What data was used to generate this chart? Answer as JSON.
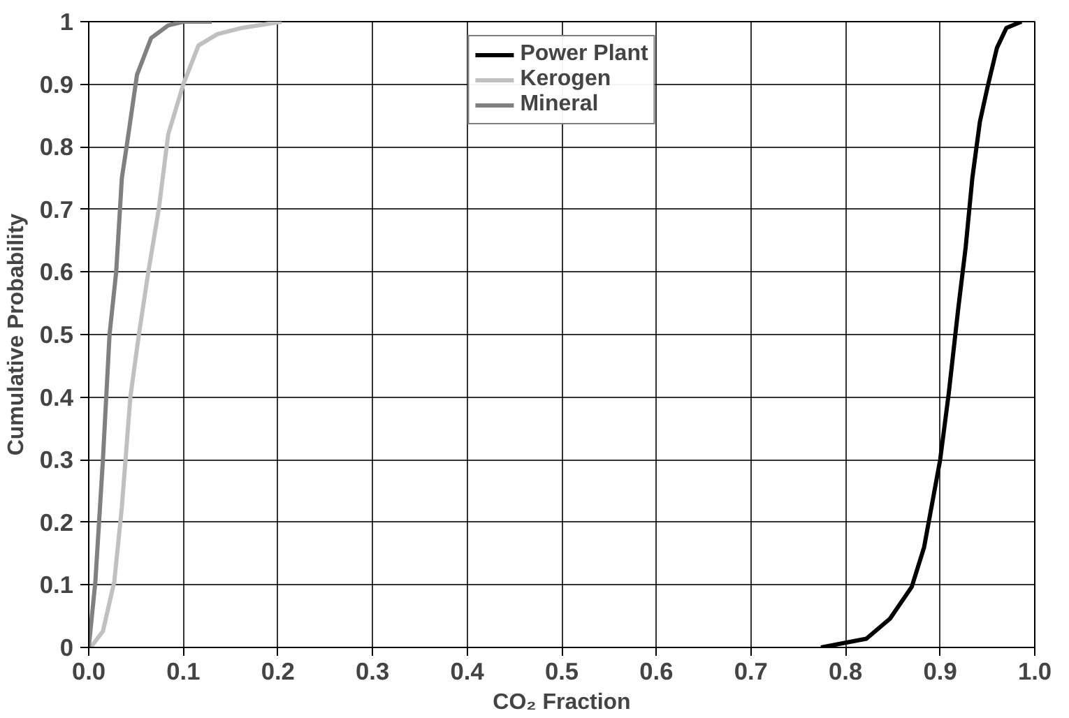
{
  "chart_data": {
    "type": "line",
    "xlabel": "CO₂ Fraction",
    "ylabel": "Cumulative Probability",
    "xlim": [
      0,
      1
    ],
    "ylim": [
      0,
      1
    ],
    "xticks": [
      {
        "value": 0,
        "label": "0.0"
      },
      0.1,
      0.2,
      0.3,
      0.4,
      0.5,
      0.6,
      0.7,
      0.8,
      0.9,
      {
        "value": 1,
        "label": "1.0"
      }
    ],
    "yticks": [
      0,
      0.1,
      0.2,
      0.3,
      0.4,
      0.5,
      0.6,
      0.7,
      0.8,
      0.9,
      1
    ],
    "grid": true,
    "legend": "top",
    "marker": "none",
    "line_style": "solid",
    "series": [
      {
        "name": "Power Plant",
        "color": "#000000",
        "x": [
          0.774,
          0.822,
          0.847,
          0.87,
          0.883,
          0.9,
          0.909,
          0.919,
          0.927,
          0.934,
          0.942,
          0.95,
          0.96,
          0.97,
          0.986
        ],
        "values": [
          0,
          0.014,
          0.046,
          0.097,
          0.16,
          0.3,
          0.405,
          0.54,
          0.64,
          0.75,
          0.84,
          0.895,
          0.958,
          0.99,
          1
        ]
      },
      {
        "name": "Kerogen",
        "color": "#c0c0c0",
        "x": [
          0.002,
          0.015,
          0.027,
          0.035,
          0.044,
          0.053,
          0.063,
          0.074,
          0.084,
          0.1,
          0.116,
          0.136,
          0.162,
          0.204
        ],
        "values": [
          0,
          0.026,
          0.105,
          0.224,
          0.4,
          0.5,
          0.6,
          0.7,
          0.82,
          0.9,
          0.962,
          0.98,
          0.99,
          1
        ]
      },
      {
        "name": "Mineral",
        "color": "#808080",
        "x": [
          0,
          0.007,
          0.015,
          0.022,
          0.029,
          0.035,
          0.04,
          0.051,
          0.066,
          0.084,
          0.1,
          0.13
        ],
        "values": [
          0,
          0.105,
          0.3,
          0.5,
          0.6,
          0.75,
          0.8,
          0.915,
          0.974,
          0.994,
          1.0,
          1
        ]
      }
    ]
  }
}
